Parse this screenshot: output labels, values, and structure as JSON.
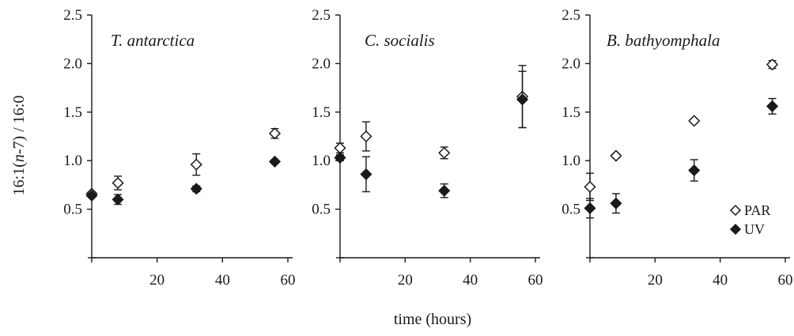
{
  "chart_data": [
    {
      "type": "scatter",
      "title": "T. antarctica",
      "xlim": [
        0,
        60
      ],
      "ylim": [
        0,
        2.5
      ],
      "xticks": [
        "20",
        "40",
        "60"
      ],
      "yticks": [
        "0.5",
        "1.0",
        "1.5",
        "2.0",
        "2.5"
      ],
      "series": [
        {
          "name": "PAR",
          "marker": "open-diamond",
          "points": [
            {
              "x": 0,
              "y": 0.66,
              "err": 0.02
            },
            {
              "x": 8,
              "y": 0.77,
              "err": 0.07
            },
            {
              "x": 32,
              "y": 0.96,
              "err": 0.11
            },
            {
              "x": 56,
              "y": 1.28,
              "err": 0.05
            }
          ]
        },
        {
          "name": "UV",
          "marker": "filled-diamond",
          "points": [
            {
              "x": 0,
              "y": 0.64,
              "err": 0.02
            },
            {
              "x": 8,
              "y": 0.6,
              "err": 0.05
            },
            {
              "x": 32,
              "y": 0.71,
              "err": 0.03
            },
            {
              "x": 56,
              "y": 0.99,
              "err": 0.02
            }
          ]
        }
      ]
    },
    {
      "type": "scatter",
      "title": "C. socialis",
      "xlim": [
        0,
        60
      ],
      "ylim": [
        0,
        2.5
      ],
      "xticks": [
        "20",
        "40",
        "60"
      ],
      "yticks": [
        "0.5",
        "1.0",
        "1.5",
        "2.0",
        "2.5"
      ],
      "series": [
        {
          "name": "PAR",
          "marker": "open-diamond",
          "points": [
            {
              "x": 0,
              "y": 1.13,
              "err": 0.05
            },
            {
              "x": 8,
              "y": 1.25,
              "err": 0.15
            },
            {
              "x": 32,
              "y": 1.08,
              "err": 0.06
            },
            {
              "x": 56,
              "y": 1.66,
              "err": 0.32
            }
          ]
        },
        {
          "name": "UV",
          "marker": "filled-diamond",
          "points": [
            {
              "x": 0,
              "y": 1.03,
              "err": 0.03
            },
            {
              "x": 8,
              "y": 0.86,
              "err": 0.18
            },
            {
              "x": 32,
              "y": 0.69,
              "err": 0.07
            },
            {
              "x": 56,
              "y": 1.63,
              "err": 0.29
            }
          ]
        }
      ]
    },
    {
      "type": "scatter",
      "title": "B. bathyomphala",
      "xlim": [
        0,
        60
      ],
      "ylim": [
        0,
        2.5
      ],
      "xticks": [
        "20",
        "40",
        "60"
      ],
      "yticks": [
        "0.5",
        "1.0",
        "1.5",
        "2.0",
        "2.5"
      ],
      "legend": {
        "position": "bottom-right",
        "entries": [
          {
            "label": "PAR",
            "marker": "open-diamond"
          },
          {
            "label": "UV",
            "marker": "filled-diamond"
          }
        ]
      },
      "series": [
        {
          "name": "PAR",
          "marker": "open-diamond",
          "points": [
            {
              "x": 0,
              "y": 0.73,
              "err": 0.14
            },
            {
              "x": 8,
              "y": 1.05,
              "err": 0.02
            },
            {
              "x": 32,
              "y": 1.41,
              "err": 0.02
            },
            {
              "x": 56,
              "y": 1.99,
              "err": 0.04
            }
          ]
        },
        {
          "name": "UV",
          "marker": "filled-diamond",
          "points": [
            {
              "x": 0,
              "y": 0.51,
              "err": 0.1
            },
            {
              "x": 8,
              "y": 0.56,
              "err": 0.1
            },
            {
              "x": 32,
              "y": 0.9,
              "err": 0.11
            },
            {
              "x": 56,
              "y": 1.56,
              "err": 0.08
            }
          ]
        }
      ]
    }
  ],
  "shared": {
    "ylabel_parts": [
      "16:1(",
      "n",
      "-7) / 16:0"
    ],
    "xlabel": "time (hours)",
    "colors": {
      "axis": "#1a1a1a",
      "marker_fill": "#1a1a1a",
      "marker_open": "#ffffff"
    }
  }
}
